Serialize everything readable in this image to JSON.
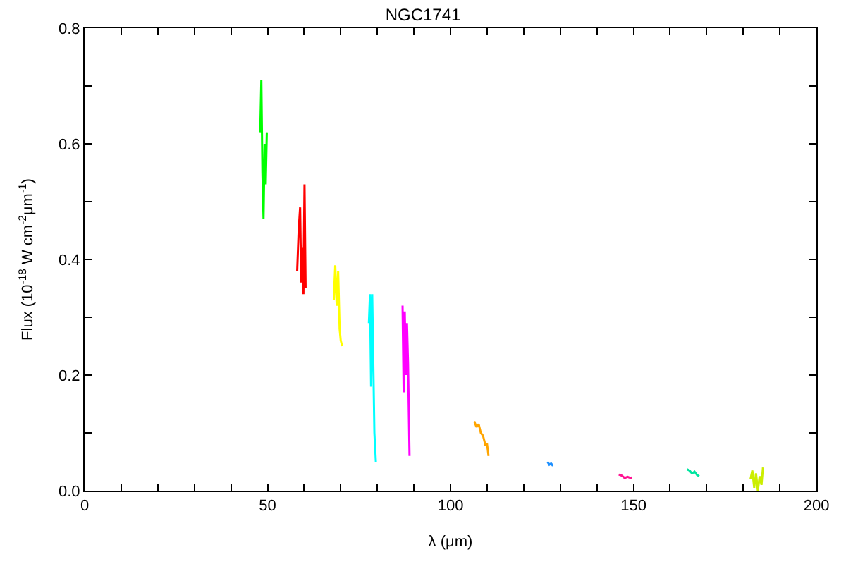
{
  "chart_data": {
    "type": "line",
    "title": "NGC1741",
    "xlabel": "λ (μm)",
    "ylabel": "Flux (10$^{-18}$ W cm$^{-2}$μm$^{-1}$)",
    "xlim": [
      0,
      200
    ],
    "ylim": [
      0,
      0.8
    ],
    "xticks": [
      0,
      {
        "value": 10,
        "label": null
      },
      {
        "value": 20,
        "label": null
      },
      {
        "value": 30,
        "label": null
      },
      {
        "value": 40,
        "label": null
      },
      50,
      {
        "value": 60,
        "label": null
      },
      {
        "value": 70,
        "label": null
      },
      {
        "value": 80,
        "label": null
      },
      {
        "value": 90,
        "label": null
      },
      100,
      {
        "value": 110,
        "label": null
      },
      {
        "value": 120,
        "label": null
      },
      {
        "value": 130,
        "label": null
      },
      {
        "value": 140,
        "label": null
      },
      150,
      {
        "value": 160,
        "label": null
      },
      {
        "value": 170,
        "label": null
      },
      {
        "value": 180,
        "label": null
      },
      {
        "value": 190,
        "label": null
      },
      200
    ],
    "yticks": [
      {
        "value": 0,
        "label": "0.0"
      },
      {
        "value": 0.1,
        "label": null
      },
      0.2,
      {
        "value": 0.3,
        "label": null
      },
      0.4,
      {
        "value": 0.5,
        "label": null
      },
      0.6,
      {
        "value": 0.7,
        "label": null
      },
      0.8
    ],
    "marker": "none",
    "line_style": "solid",
    "series": [
      {
        "color": "#00ff00",
        "x": [
          48.0,
          48.3,
          48.6,
          48.9,
          49.2,
          49.5,
          49.8
        ],
        "values": [
          0.62,
          0.71,
          0.55,
          0.47,
          0.6,
          0.53,
          0.62
        ]
      },
      {
        "color": "#ff0000",
        "x": [
          58.1,
          58.5,
          58.9,
          59.2,
          59.5,
          59.8,
          60.1,
          60.4
        ],
        "values": [
          0.38,
          0.45,
          0.49,
          0.36,
          0.42,
          0.34,
          0.53,
          0.35
        ]
      },
      {
        "color": "#ffff00",
        "x": [
          68.1,
          68.5,
          68.9,
          69.3,
          69.7,
          70.0,
          70.4
        ],
        "values": [
          0.33,
          0.39,
          0.32,
          0.38,
          0.28,
          0.26,
          0.25
        ]
      },
      {
        "color": "#00ffff",
        "x": [
          77.7,
          78.0,
          78.3,
          78.6,
          78.9,
          79.2,
          79.6
        ],
        "values": [
          0.29,
          0.34,
          0.18,
          0.34,
          0.22,
          0.1,
          0.05
        ]
      },
      {
        "color": "#ff00ff",
        "x": [
          86.9,
          87.2,
          87.5,
          87.8,
          88.1,
          88.4,
          88.8
        ],
        "values": [
          0.32,
          0.17,
          0.31,
          0.2,
          0.29,
          0.22,
          0.06
        ]
      },
      {
        "color": "#ffa500",
        "x": [
          106.5,
          107.1,
          107.7,
          108.3,
          108.9,
          109.5,
          110.0,
          110.4
        ],
        "values": [
          0.12,
          0.11,
          0.115,
          0.1,
          0.095,
          0.08,
          0.08,
          0.06
        ]
      },
      {
        "color": "#1e90ff",
        "x": [
          126.5,
          127.0,
          127.5,
          128.0
        ],
        "values": [
          0.05,
          0.045,
          0.047,
          0.043
        ]
      },
      {
        "color": "#ff1493",
        "x": [
          146.0,
          146.8,
          147.6,
          148.4,
          149.2,
          149.6
        ],
        "values": [
          0.028,
          0.026,
          0.022,
          0.024,
          0.022,
          0.023
        ]
      },
      {
        "color": "#00e5a0",
        "x": [
          164.6,
          165.3,
          166.0,
          166.7,
          167.4,
          168.0
        ],
        "values": [
          0.037,
          0.035,
          0.03,
          0.033,
          0.027,
          0.025
        ]
      },
      {
        "color": "#ccee00",
        "x": [
          182.0,
          182.5,
          183.0,
          183.5,
          184.0,
          184.5,
          185.0,
          185.4
        ],
        "values": [
          0.02,
          0.035,
          0.005,
          0.03,
          0.0,
          0.025,
          0.01,
          0.04
        ]
      }
    ]
  }
}
